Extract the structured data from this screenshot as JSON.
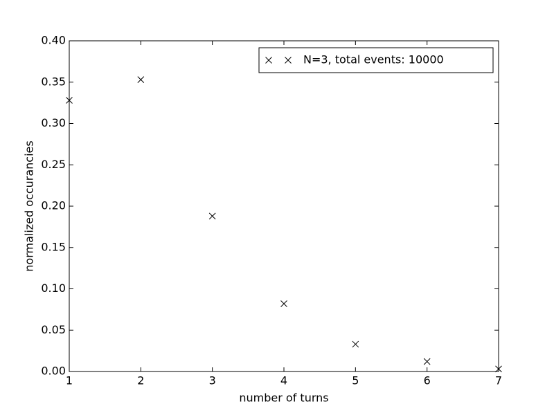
{
  "chart_data": {
    "type": "scatter",
    "x_label": "number of turns",
    "y_label": "normalized occurancies",
    "x": [
      1,
      2,
      3,
      4,
      5,
      6,
      7
    ],
    "series": [
      {
        "name": "N=3, total events: 10000",
        "color": "#000000",
        "marker": "x",
        "values": [
          0.328,
          0.353,
          0.188,
          0.082,
          0.033,
          0.012,
          0.003
        ]
      }
    ],
    "xlim": [
      1,
      7
    ],
    "xticks": [
      1,
      2,
      3,
      4,
      5,
      6,
      7
    ],
    "ylim": [
      0,
      0.4
    ],
    "yticks": [
      {
        "value": 0,
        "label": "0.00"
      },
      {
        "value": 0.05,
        "label": "0.05"
      },
      {
        "value": 0.1,
        "label": "0.10"
      },
      {
        "value": 0.15,
        "label": "0.15"
      },
      {
        "value": 0.2,
        "label": "0.20"
      },
      {
        "value": 0.25,
        "label": "0.25"
      },
      {
        "value": 0.3,
        "label": "0.30"
      },
      {
        "value": 0.35,
        "label": "0.35"
      },
      {
        "value": 0.4,
        "label": "0.40"
      }
    ],
    "legend": "upper right",
    "grid": false
  }
}
